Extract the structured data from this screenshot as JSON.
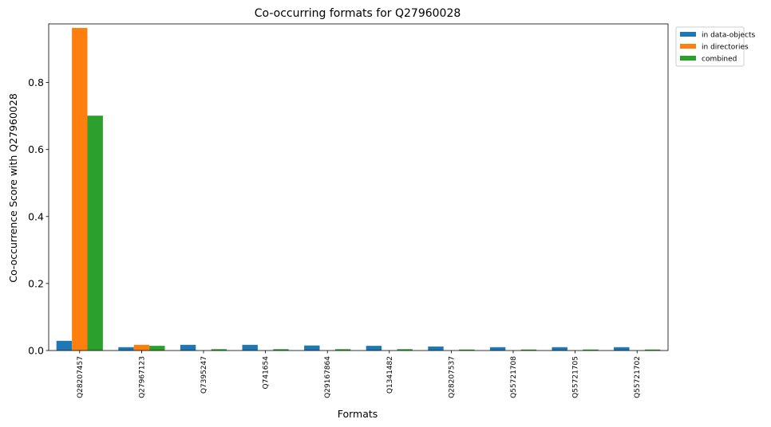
{
  "chart_data": {
    "type": "bar",
    "title": "Co-occurring formats for Q27960028",
    "xlabel": "Formats",
    "ylabel": "Co-occurrence Score with Q27960028",
    "categories": [
      "Q28207457",
      "Q27967123",
      "Q7395247",
      "Q741654",
      "Q29167864",
      "Q1341482",
      "Q28207537",
      "Q55721708",
      "Q55721705",
      "Q55721702"
    ],
    "series": [
      {
        "name": "in data-objects",
        "color": "#1f77b4",
        "values": [
          0.029,
          0.01,
          0.017,
          0.017,
          0.015,
          0.014,
          0.012,
          0.01,
          0.01,
          0.01
        ]
      },
      {
        "name": "in directories",
        "color": "#ff7f0e",
        "values": [
          0.963,
          0.017,
          0.0,
          0.0,
          0.0,
          0.0,
          0.0,
          0.0,
          0.0,
          0.0
        ]
      },
      {
        "name": "combined",
        "color": "#2ca02c",
        "values": [
          0.701,
          0.014,
          0.004,
          0.004,
          0.004,
          0.004,
          0.003,
          0.003,
          0.003,
          0.003
        ]
      }
    ],
    "yticks": [
      "0.0",
      "0.2",
      "0.4",
      "0.6",
      "0.8"
    ],
    "ylim": [
      0,
      0.975
    ],
    "grid": false,
    "legend_position": "upper right, outside plot"
  }
}
